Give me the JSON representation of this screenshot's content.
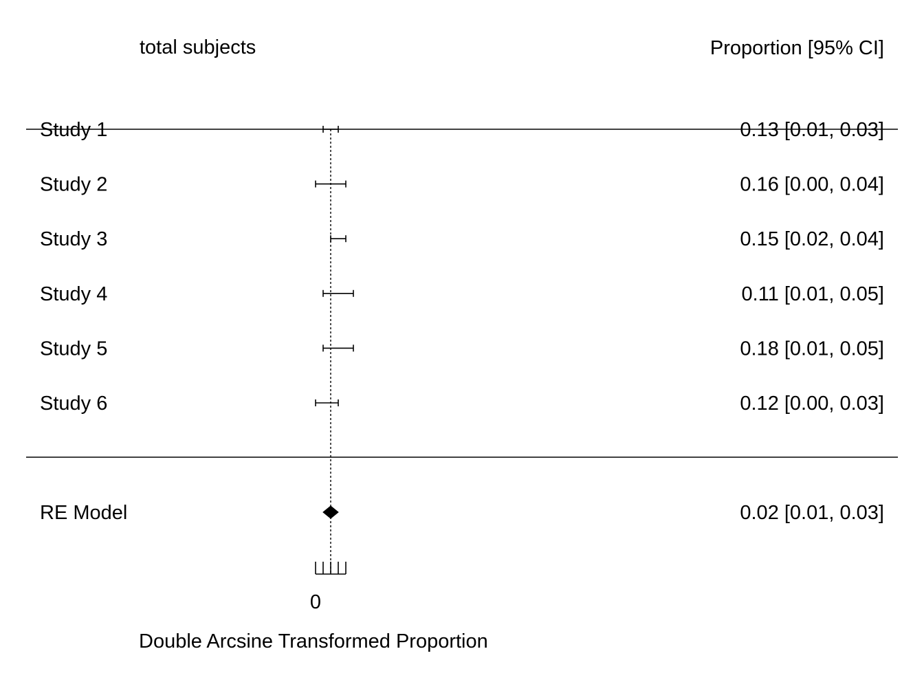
{
  "chart_data": {
    "type": "forest",
    "header_left": "total subjects",
    "header_right": "Proportion [95% CI]",
    "xlabel": "Double Arcsine Transformed Proportion",
    "x_tick_labels": [
      "0"
    ],
    "studies": [
      {
        "label": "Study 1",
        "estimate": 0.13,
        "ci_low": 0.01,
        "ci_high": 0.03,
        "summary": "0.13 [0.01, 0.03]"
      },
      {
        "label": "Study 2",
        "estimate": 0.16,
        "ci_low": 0.0,
        "ci_high": 0.04,
        "summary": "0.16 [0.00, 0.04]"
      },
      {
        "label": "Study 3",
        "estimate": 0.15,
        "ci_low": 0.02,
        "ci_high": 0.04,
        "summary": "0.15 [0.02, 0.04]"
      },
      {
        "label": "Study 4",
        "estimate": 0.11,
        "ci_low": 0.01,
        "ci_high": 0.05,
        "summary": "0.11 [0.01, 0.05]"
      },
      {
        "label": "Study 5",
        "estimate": 0.18,
        "ci_low": 0.01,
        "ci_high": 0.05,
        "summary": "0.18 [0.01, 0.05]"
      },
      {
        "label": "Study 6",
        "estimate": 0.12,
        "ci_low": 0.0,
        "ci_high": 0.03,
        "summary": "0.12 [0.00, 0.03]"
      }
    ],
    "pooled": {
      "label": "RE Model",
      "estimate": 0.02,
      "ci_low": 0.01,
      "ci_high": 0.03,
      "summary": "0.02 [0.01, 0.03]"
    },
    "reference_line": 0.02,
    "reference_line_style": "dotted"
  }
}
